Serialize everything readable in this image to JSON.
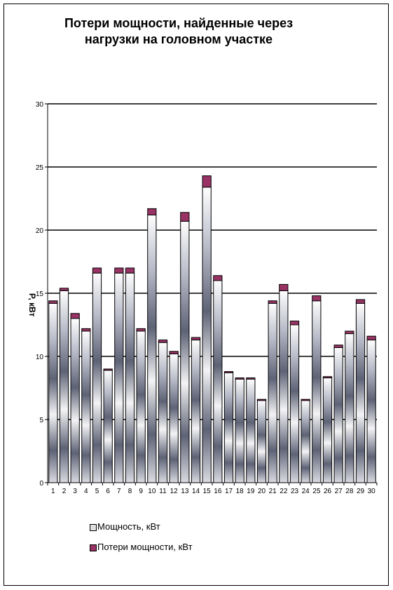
{
  "chart_data": {
    "type": "bar",
    "stacked": true,
    "title": [
      "Потери мощности, найденные через",
      "нагрузки на головном участке"
    ],
    "ylabel": "P, кВт",
    "ylim": [
      0,
      30
    ],
    "yticks": [
      0,
      5,
      10,
      15,
      20,
      25,
      30
    ],
    "grid": true,
    "legend_position": "bottom",
    "categories": [
      "1",
      "2",
      "3",
      "4",
      "5",
      "6",
      "7",
      "8",
      "9",
      "10",
      "11",
      "12",
      "13",
      "14",
      "15",
      "16",
      "17",
      "18",
      "19",
      "20",
      "21",
      "22",
      "23",
      "24",
      "25",
      "26",
      "27",
      "28",
      "29",
      "30"
    ],
    "series": [
      {
        "name": "Мощность, кВт",
        "color": "#e0e0e0",
        "values": [
          14.2,
          15.2,
          13.0,
          12.0,
          16.6,
          8.9,
          16.6,
          16.6,
          12.0,
          21.2,
          11.1,
          10.2,
          20.7,
          11.3,
          23.4,
          16.0,
          8.7,
          8.2,
          8.2,
          6.5,
          14.2,
          15.2,
          12.5,
          6.5,
          14.4,
          8.3,
          10.7,
          11.8,
          14.2,
          11.3
        ]
      },
      {
        "name": "Потери мощности, кВт",
        "color": "#993366",
        "values": [
          0.2,
          0.2,
          0.4,
          0.2,
          0.4,
          0.1,
          0.4,
          0.4,
          0.2,
          0.5,
          0.2,
          0.2,
          0.7,
          0.2,
          0.9,
          0.4,
          0.1,
          0.1,
          0.1,
          0.1,
          0.2,
          0.5,
          0.3,
          0.1,
          0.4,
          0.1,
          0.2,
          0.2,
          0.3,
          0.3
        ]
      }
    ]
  }
}
